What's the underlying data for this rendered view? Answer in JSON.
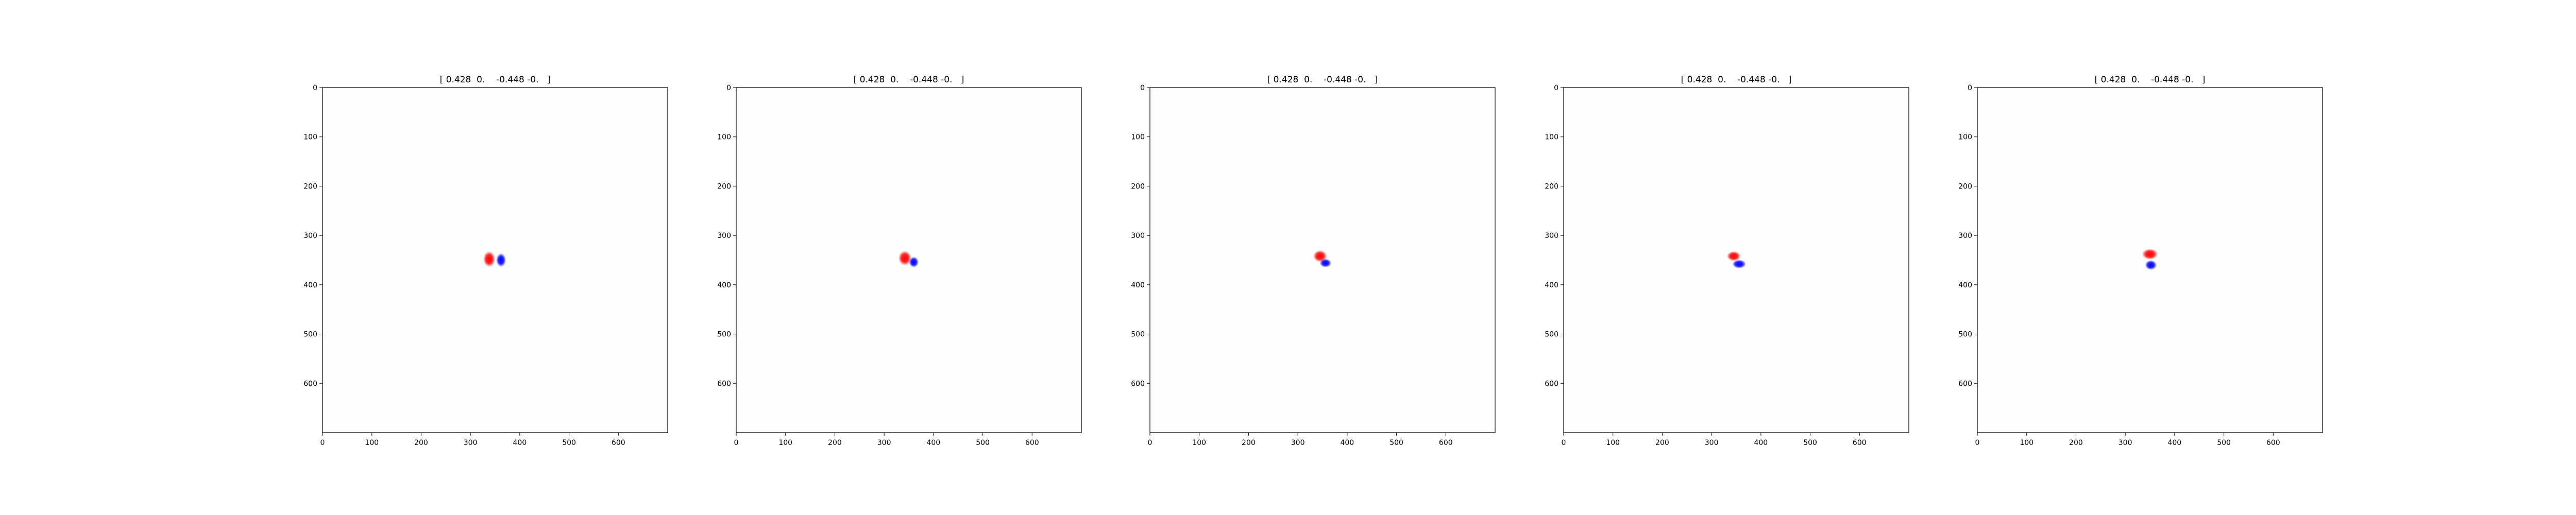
{
  "chart_data": [
    {
      "type": "heatmap",
      "title": "[ 0.428  0.    -0.448 -0.   ]",
      "xlabel": "",
      "ylabel": "",
      "xlim": [
        0,
        700
      ],
      "ylim": [
        700,
        0
      ],
      "xticks": [
        "0",
        "100",
        "200",
        "300",
        "400",
        "500",
        "600"
      ],
      "yticks": [
        "0",
        "100",
        "200",
        "300",
        "400",
        "500",
        "600"
      ],
      "colormap": "bwr",
      "colors": {
        "positive": "#ff0000",
        "negative": "#0000ff",
        "zero": "#ffffff"
      },
      "blobs": [
        {
          "sign": "positive",
          "x": 338,
          "y": 348,
          "rx": 12,
          "ry": 16
        },
        {
          "sign": "negative",
          "x": 362,
          "y": 350,
          "rx": 10,
          "ry": 14
        }
      ]
    },
    {
      "type": "heatmap",
      "title": "[ 0.428  0.    -0.448 -0.   ]",
      "xlabel": "",
      "ylabel": "",
      "xlim": [
        0,
        700
      ],
      "ylim": [
        700,
        0
      ],
      "xticks": [
        "0",
        "100",
        "200",
        "300",
        "400",
        "500",
        "600"
      ],
      "yticks": [
        "0",
        "100",
        "200",
        "300",
        "400",
        "500",
        "600"
      ],
      "colormap": "bwr",
      "colors": {
        "positive": "#ff0000",
        "negative": "#0000ff",
        "zero": "#ffffff"
      },
      "blobs": [
        {
          "sign": "positive",
          "x": 342,
          "y": 346,
          "rx": 13,
          "ry": 15
        },
        {
          "sign": "negative",
          "x": 360,
          "y": 354,
          "rx": 10,
          "ry": 11
        }
      ]
    },
    {
      "type": "heatmap",
      "title": "[ 0.428  0.    -0.448 -0.   ]",
      "xlabel": "",
      "ylabel": "",
      "xlim": [
        0,
        700
      ],
      "ylim": [
        700,
        0
      ],
      "xticks": [
        "0",
        "100",
        "200",
        "300",
        "400",
        "500",
        "600"
      ],
      "yticks": [
        "0",
        "100",
        "200",
        "300",
        "400",
        "500",
        "600"
      ],
      "colormap": "bwr",
      "colors": {
        "positive": "#ff0000",
        "negative": "#0000ff",
        "zero": "#ffffff"
      },
      "blobs": [
        {
          "sign": "positive",
          "x": 345,
          "y": 342,
          "rx": 14,
          "ry": 12
        },
        {
          "sign": "negative",
          "x": 356,
          "y": 356,
          "rx": 12,
          "ry": 9
        }
      ]
    },
    {
      "type": "heatmap",
      "title": "[ 0.428  0.    -0.448 -0.   ]",
      "xlabel": "",
      "ylabel": "",
      "xlim": [
        0,
        700
      ],
      "ylim": [
        700,
        0
      ],
      "xticks": [
        "0",
        "100",
        "200",
        "300",
        "400",
        "500",
        "600"
      ],
      "yticks": [
        "0",
        "100",
        "200",
        "300",
        "400",
        "500",
        "600"
      ],
      "colormap": "bwr",
      "colors": {
        "positive": "#ff0000",
        "negative": "#0000ff",
        "zero": "#ffffff"
      },
      "blobs": [
        {
          "sign": "positive",
          "x": 345,
          "y": 342,
          "rx": 14,
          "ry": 10
        },
        {
          "sign": "negative",
          "x": 356,
          "y": 358,
          "rx": 14,
          "ry": 9
        }
      ]
    },
    {
      "type": "heatmap",
      "title": "[ 0.428  0.    -0.448 -0.   ]",
      "xlabel": "",
      "ylabel": "",
      "xlim": [
        0,
        700
      ],
      "ylim": [
        700,
        0
      ],
      "xticks": [
        "0",
        "100",
        "200",
        "300",
        "400",
        "500",
        "600"
      ],
      "yticks": [
        "0",
        "100",
        "200",
        "300",
        "400",
        "500",
        "600"
      ],
      "colormap": "bwr",
      "colors": {
        "positive": "#ff0000",
        "negative": "#0000ff",
        "zero": "#ffffff"
      },
      "blobs": [
        {
          "sign": "positive",
          "x": 350,
          "y": 338,
          "rx": 16,
          "ry": 11
        },
        {
          "sign": "negative",
          "x": 352,
          "y": 360,
          "rx": 12,
          "ry": 10
        }
      ]
    }
  ]
}
